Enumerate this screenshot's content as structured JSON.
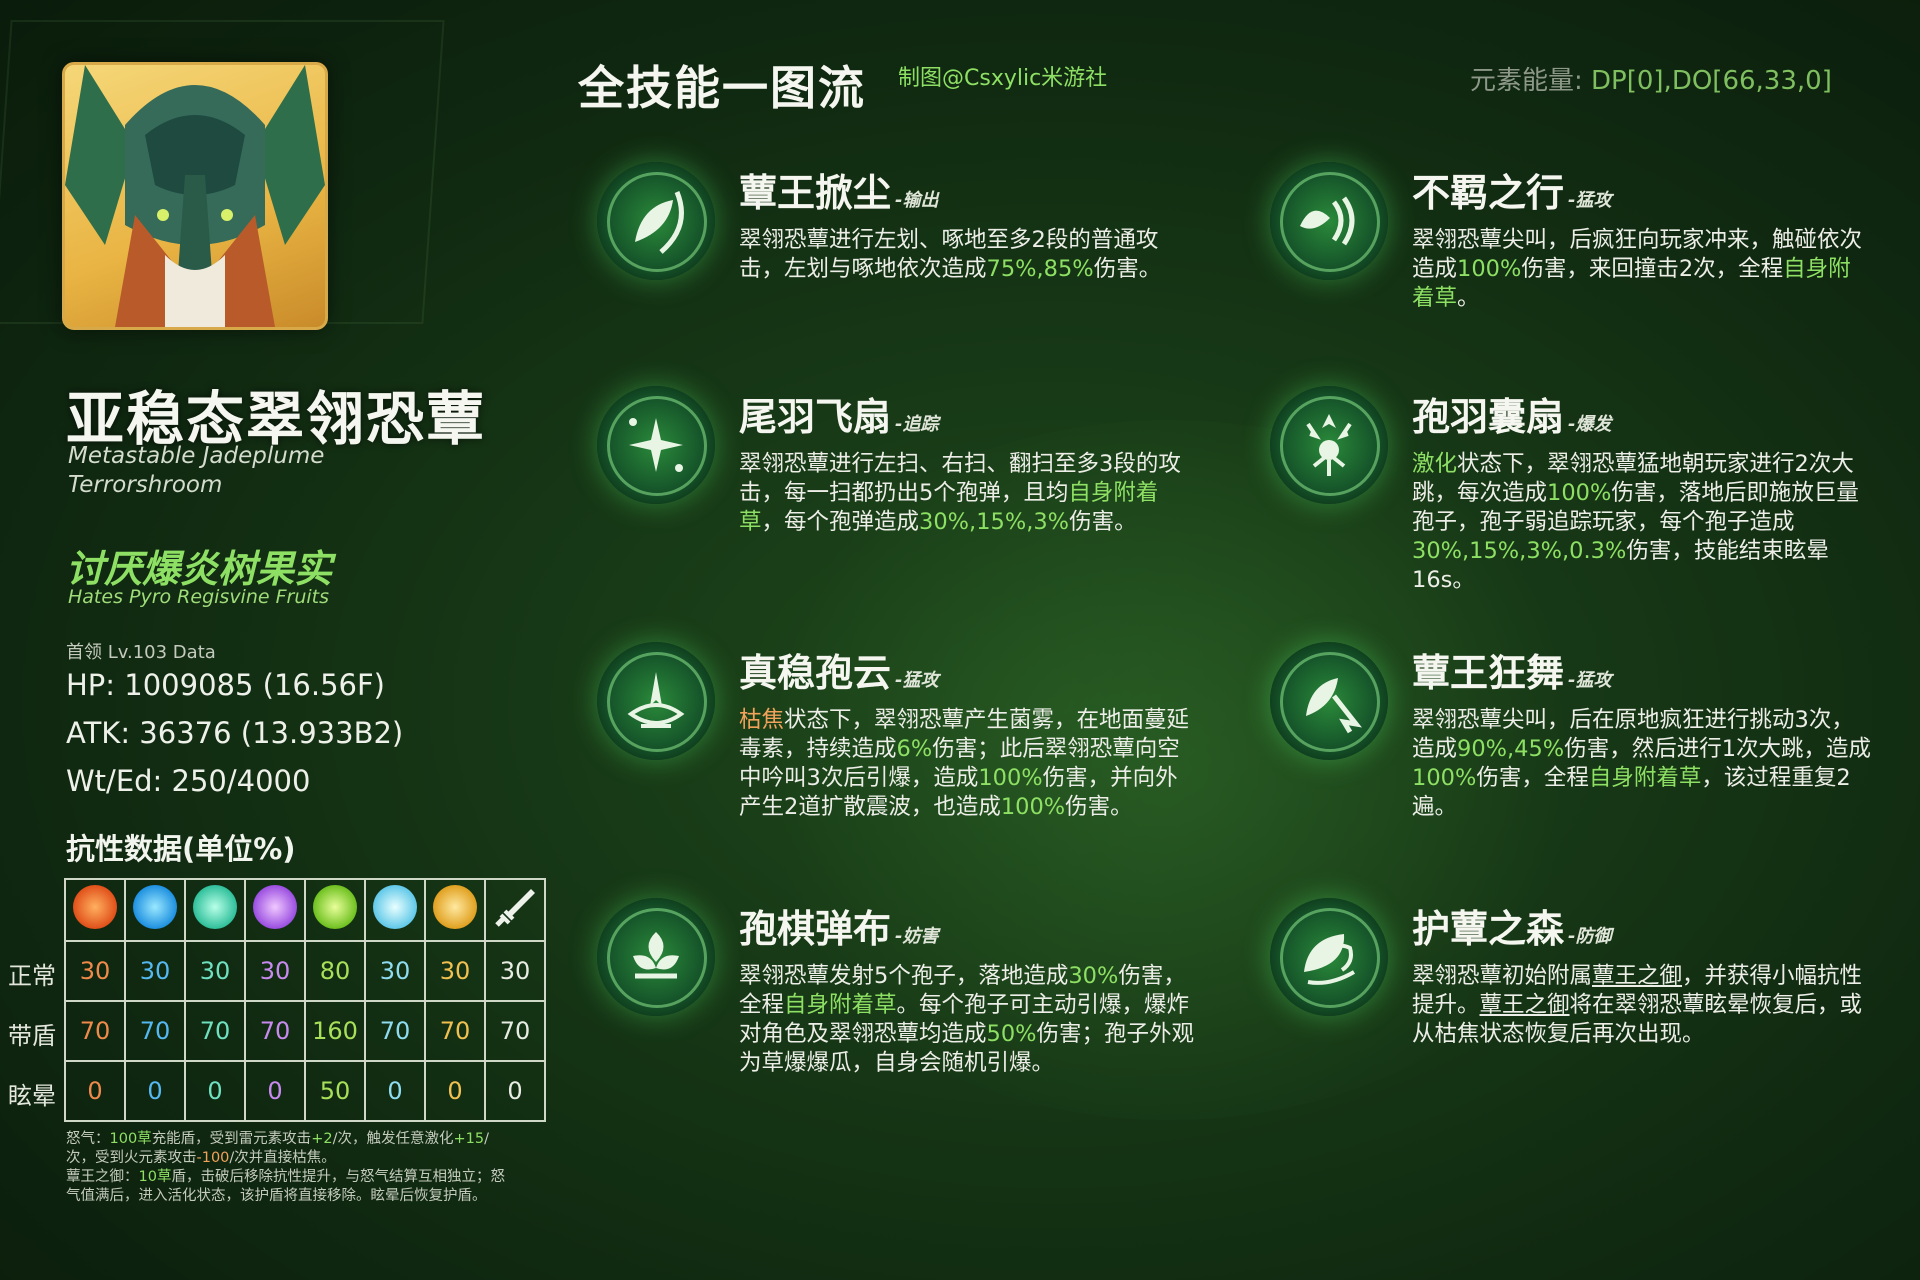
{
  "header": {
    "title": "全技能一图流",
    "credit": "制图@Csxylic米游社",
    "energy_label": "元素能量:",
    "energy_value": "DP[0],DO[66,33,0]"
  },
  "boss": {
    "name": "亚稳态翠翎恐蕈",
    "name_en": "Metastable Jadeplume Terrorshroom",
    "weakness": "讨厌爆炎树果实",
    "weakness_en": "Hates Pyro Regisvine Fruits",
    "level": "首领 Lv.103 Data",
    "hp": "HP: 1009085 (16.56F)",
    "atk": "ATK: 36376 (13.933B2)",
    "wted": "Wt/Ed: 250/4000"
  },
  "resistance": {
    "title": "抗性数据(单位%)",
    "elements": [
      "pyro-icon",
      "hydro-icon",
      "anemo-icon",
      "electro-icon",
      "dendro-icon",
      "cryo-icon",
      "geo-icon",
      "physical-icon"
    ],
    "rows": [
      {
        "label": "正常",
        "values": [
          "30",
          "30",
          "30",
          "30",
          "80",
          "30",
          "30",
          "30"
        ]
      },
      {
        "label": "带盾",
        "values": [
          "70",
          "70",
          "70",
          "70",
          "160",
          "70",
          "70",
          "70"
        ]
      },
      {
        "label": "眩晕",
        "values": [
          "0",
          "0",
          "0",
          "0",
          "50",
          "0",
          "0",
          "0"
        ]
      }
    ],
    "value_colors": [
      "#f08a4b",
      "#55b8f0",
      "#6fe0c0",
      "#c98af0",
      "#a8e05a",
      "#8fdcf0",
      "#f0c050",
      "#e8ece4"
    ]
  },
  "footnote": {
    "l1a": "怒气：",
    "l1b": "100草",
    "l1c": "充能盾，受到雷元素攻击",
    "l1d": "+2",
    "l1e": "/次，触发任意激化",
    "l2a": "+15",
    "l2b": "/次，受到火元素攻击",
    "l2c": "-100",
    "l2d": "/次并直接枯焦。",
    "l3a": "蕈王之御：",
    "l3b": "10草",
    "l3c": "盾，击破后移除抗性提升，与怒气结算互相独立；怒气值满后，进入活化状态，该护盾将直接移除。眩晕后恢复护盾。"
  },
  "skills": [
    {
      "name": "蕈王掀尘",
      "tag": "-输出",
      "d1": "翠翎恐蕈进行左划、啄地至多2段的普通攻击，左划与啄地依次造成",
      "d2": "75%,85%",
      "d3": "伤害。"
    },
    {
      "name": "不羁之行",
      "tag": "-猛攻",
      "d1": "翠翎恐蕈尖叫，后疯狂向玩家冲来，触碰依次造成",
      "d2": "100%",
      "d3": "伤害，来回撞击2次，全程",
      "d4": "自身附着草",
      "d5": "。"
    },
    {
      "name": "尾羽飞扇",
      "tag": "-追踪",
      "d1": "翠翎恐蕈进行左扫、右扫、翻扫至多3段的攻击，每一扫都扔出5个孢弹，且均",
      "d2": "自身附着草",
      "d3": "，每个孢弹造成",
      "d4": "30%,15%,3%",
      "d5": "伤害。"
    },
    {
      "name": "孢羽囊扇",
      "tag": "-爆发",
      "d1": "激化",
      "d2": "状态下，翠翎恐蕈猛地朝玩家进行2次大跳，每次造成",
      "d3": "100%",
      "d4": "伤害，落地后即施放巨量孢子，孢子弱追踪玩家，每个孢子造成",
      "d5": "30%,15%,3%,0.3%",
      "d6": "伤害，技能结束眩晕16s。"
    },
    {
      "name": "真稳孢云",
      "tag": "-猛攻",
      "d1": "枯焦",
      "d2": "状态下，翠翎恐蕈产生菌雾，在地面蔓延毒素，持续造成",
      "d3": "6%",
      "d4": "伤害；此后翠翎恐蕈向空中吟叫3次后引爆，造成",
      "d5": "100%",
      "d6": "伤害，并向外产生2道扩散震波，也造成",
      "d7": "100%",
      "d8": "伤害。"
    },
    {
      "name": "蕈王狂舞",
      "tag": "-猛攻",
      "d1": "翠翎恐蕈尖叫，后在原地疯狂进行挑动3次，造成",
      "d2": "90%,45%",
      "d3": "伤害，然后进行1次大跳，造成",
      "d4": "100%",
      "d5": "伤害，全程",
      "d6": "自身附着草",
      "d7": "，该过程重复2遍。"
    },
    {
      "name": "孢棋弹布",
      "tag": "-妨害",
      "d1": "翠翎恐蕈发射5个孢子，落地造成",
      "d2": "30%",
      "d3": "伤害，全程",
      "d4": "自身附着草",
      "d5": "。每个孢子可主动引爆，爆炸对角色及翠翎恐蕈均造成",
      "d6": "50%",
      "d7": "伤害；孢子外观为草爆爆瓜，自身会随机引爆。"
    },
    {
      "name": "护蕈之森",
      "tag": "-防御",
      "d1": "翠翎恐蕈初始附属",
      "d2": "蕈王之御",
      "d3": "，并获得小幅抗性提升。",
      "d4": "蕈王之御",
      "d5": "将在翠翎恐蕈眩晕恢复后，或从枯焦状态恢复后再次出现。"
    }
  ]
}
